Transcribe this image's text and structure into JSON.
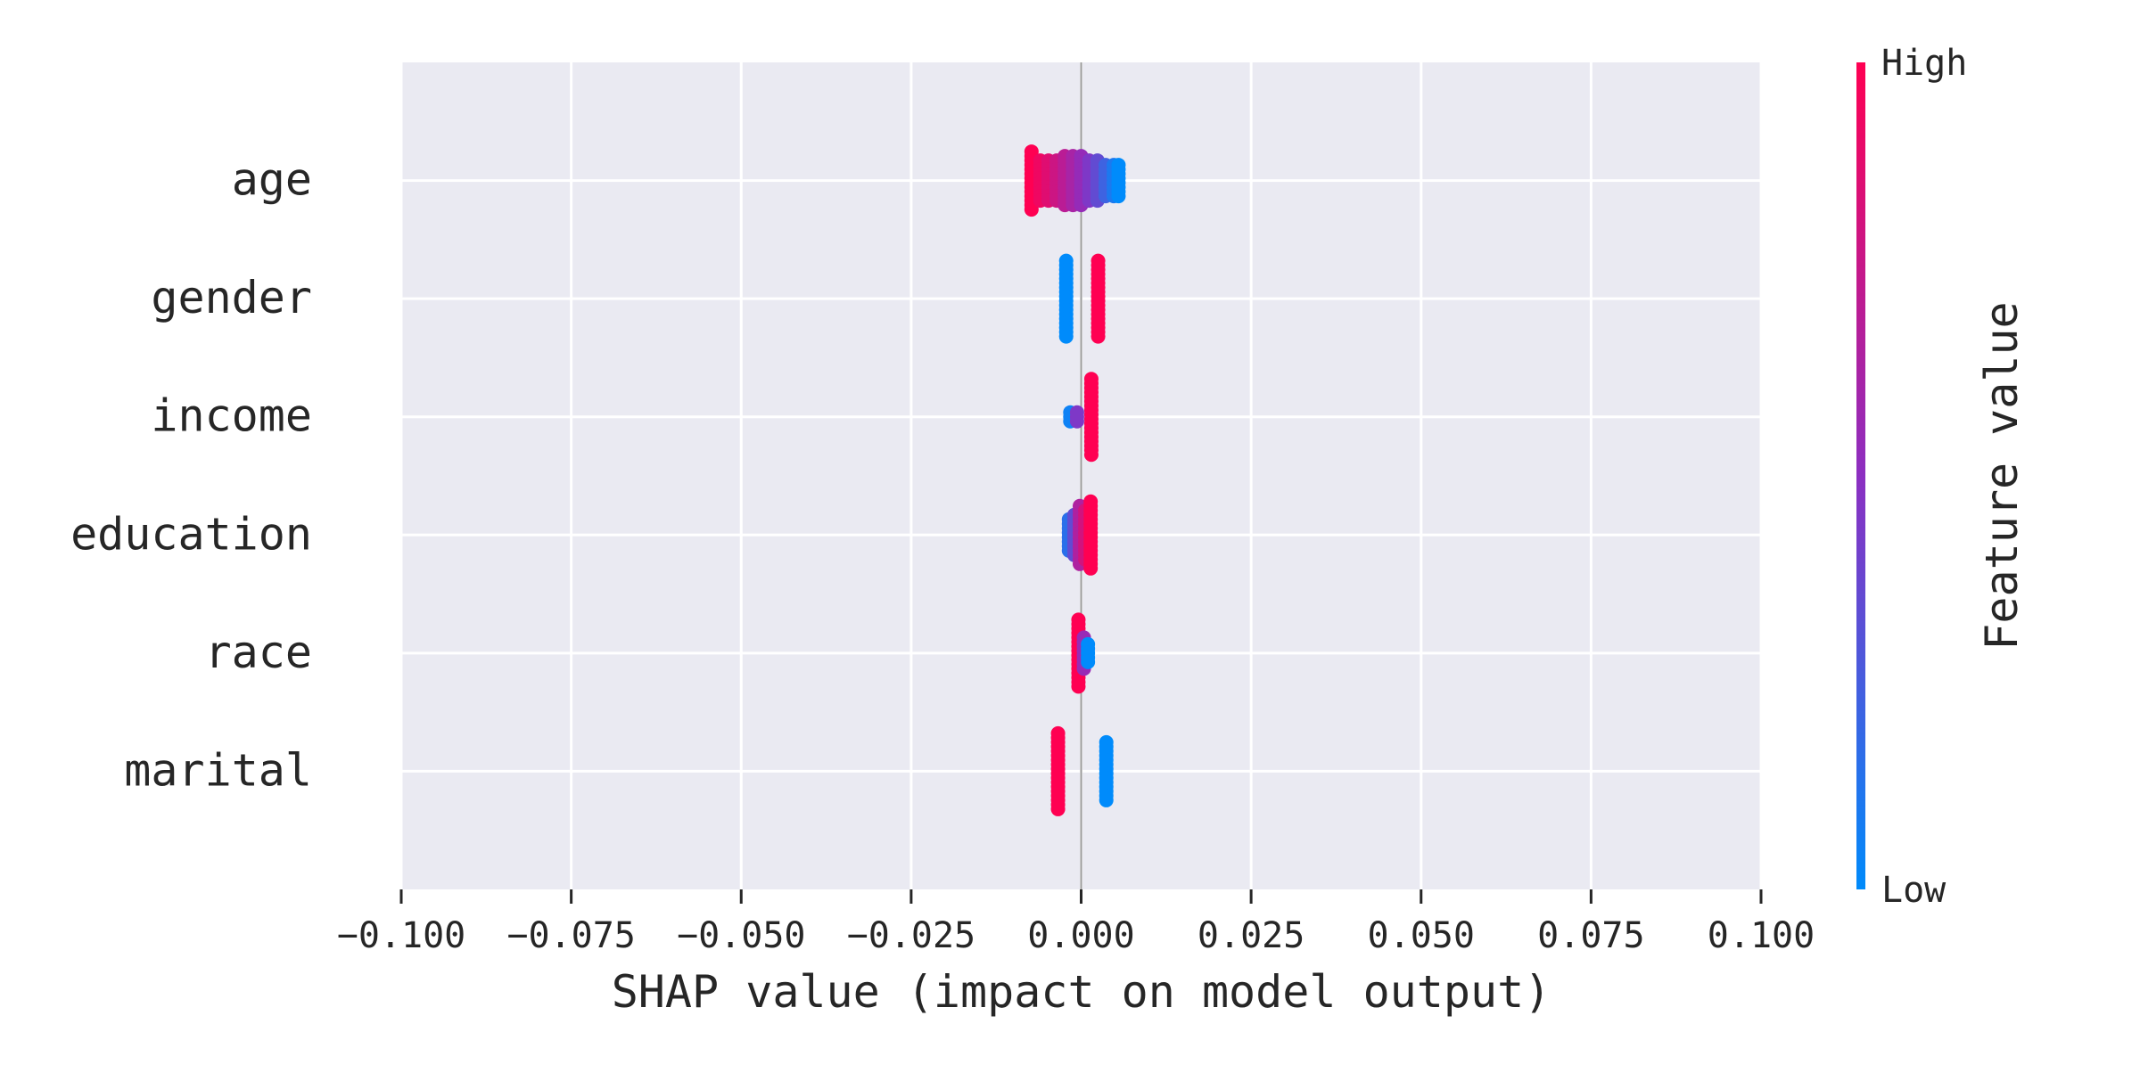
{
  "chart_data": {
    "type": "scatter",
    "subtype": "shap-beeswarm",
    "title": "",
    "xlabel": "SHAP value (impact on model output)",
    "ylabel": "",
    "xlim": [
      -0.1,
      0.1
    ],
    "x_ticks": [
      -0.1,
      -0.075,
      -0.05,
      -0.025,
      0.0,
      0.025,
      0.05,
      0.075,
      0.1
    ],
    "x_tick_labels": [
      "−0.100",
      "−0.075",
      "−0.050",
      "−0.025",
      "0.000",
      "0.025",
      "0.050",
      "0.075",
      "0.100"
    ],
    "grid": true,
    "features": [
      {
        "name": "age",
        "points": [
          {
            "x": -0.0073,
            "v": 1.0,
            "n": 14
          },
          {
            "x": -0.006,
            "v": 0.93,
            "n": 10
          },
          {
            "x": -0.0048,
            "v": 0.86,
            "n": 10
          },
          {
            "x": -0.0036,
            "v": 0.78,
            "n": 10
          },
          {
            "x": -0.0024,
            "v": 0.7,
            "n": 12
          },
          {
            "x": -0.0012,
            "v": 0.62,
            "n": 12
          },
          {
            "x": 0.0,
            "v": 0.54,
            "n": 12
          },
          {
            "x": 0.0012,
            "v": 0.45,
            "n": 10
          },
          {
            "x": 0.0024,
            "v": 0.35,
            "n": 10
          },
          {
            "x": 0.0036,
            "v": 0.22,
            "n": 8
          },
          {
            "x": 0.0048,
            "v": 0.1,
            "n": 8
          },
          {
            "x": 0.0055,
            "v": 0.0,
            "n": 8
          }
        ]
      },
      {
        "name": "gender",
        "points": [
          {
            "x": -0.0022,
            "v": 0.0,
            "n": 18
          },
          {
            "x": 0.0025,
            "v": 1.0,
            "n": 18
          }
        ]
      },
      {
        "name": "income",
        "points": [
          {
            "x": -0.0016,
            "v": 0.05,
            "n": 3
          },
          {
            "x": -0.0006,
            "v": 0.45,
            "n": 3
          },
          {
            "x": 0.0015,
            "v": 1.0,
            "n": 18
          }
        ]
      },
      {
        "name": "education",
        "points": [
          {
            "x": -0.0018,
            "v": 0.15,
            "n": 8
          },
          {
            "x": -0.001,
            "v": 0.35,
            "n": 10
          },
          {
            "x": -0.0002,
            "v": 0.65,
            "n": 14
          },
          {
            "x": 0.0006,
            "v": 0.8,
            "n": 12
          },
          {
            "x": 0.0014,
            "v": 1.0,
            "n": 16
          }
        ]
      },
      {
        "name": "race",
        "points": [
          {
            "x": -0.0004,
            "v": 1.0,
            "n": 16
          },
          {
            "x": 0.0004,
            "v": 0.55,
            "n": 8
          },
          {
            "x": 0.001,
            "v": 0.0,
            "n": 5
          }
        ]
      },
      {
        "name": "marital",
        "points": [
          {
            "x": -0.0034,
            "v": 1.0,
            "n": 18
          },
          {
            "x": 0.0037,
            "v": 0.0,
            "n": 14
          }
        ]
      }
    ],
    "colorbar": {
      "label": "Feature value",
      "high_label": "High",
      "low_label": "Low",
      "low_color": "#008bfb",
      "mid_color": "#8c2fc1",
      "high_color": "#ff0052"
    },
    "plot_background": "#eaeaf2"
  }
}
